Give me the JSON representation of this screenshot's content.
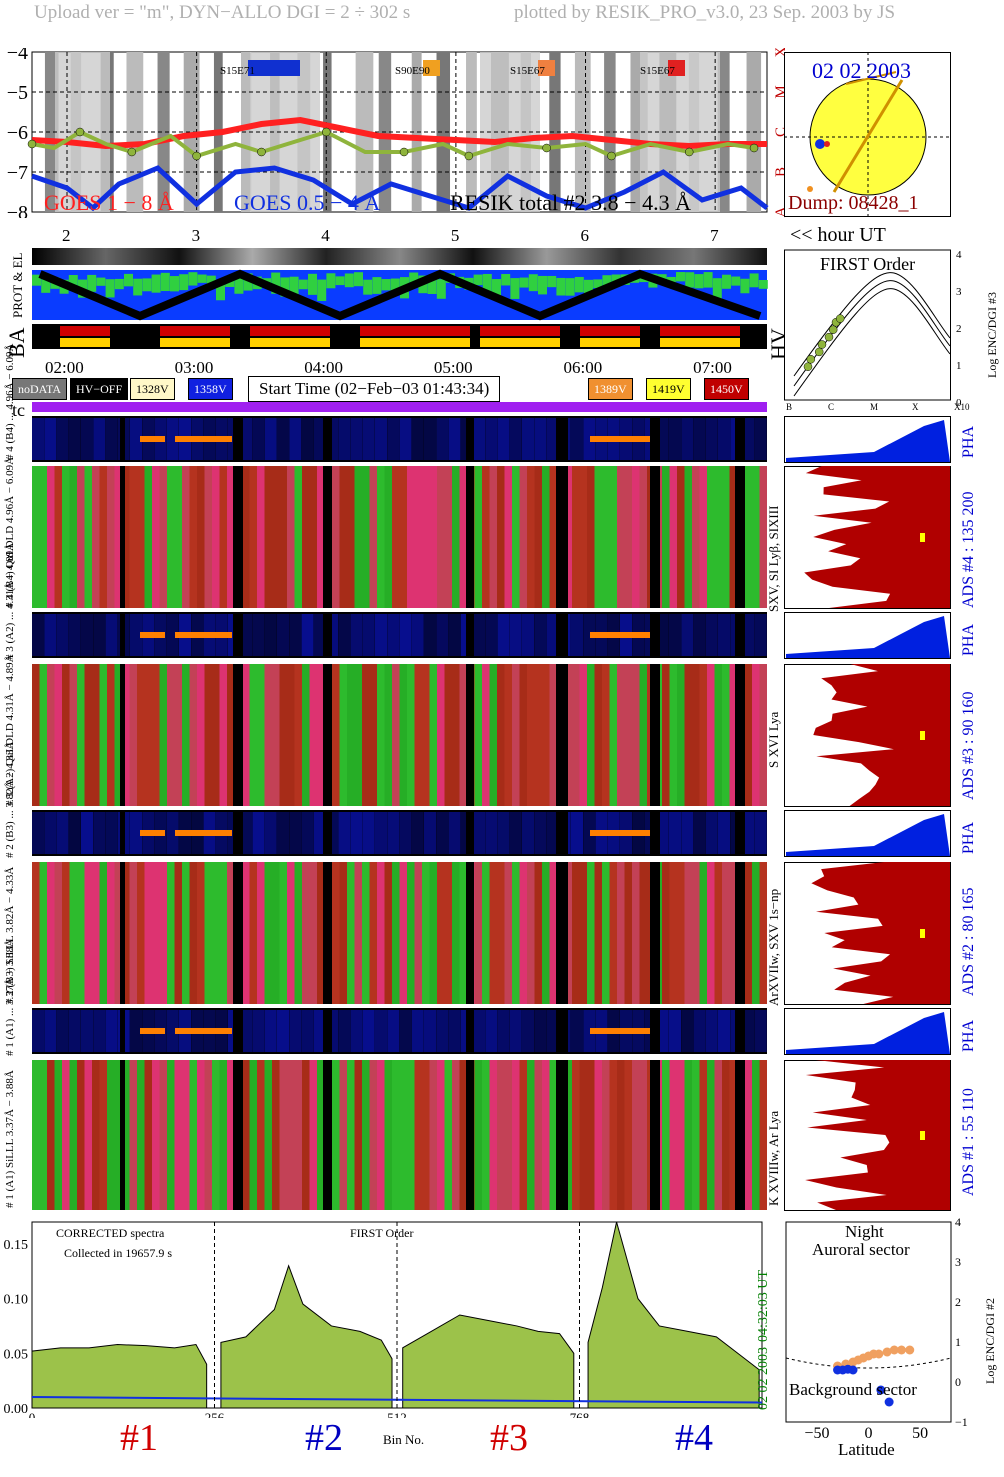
{
  "header": {
    "left": "Upload ver = \"m\", DYN−ALLO DGI =   2 ÷ 302 s",
    "right": "plotted by RESIK_PRO_v3.0, 23 Sep. 2003 by JS"
  },
  "goes": {
    "y_ticks": [
      "−4",
      "−5",
      "−6",
      "−7",
      "−8"
    ],
    "class_letters": [
      "X",
      "M",
      "C",
      "B",
      "A"
    ],
    "flare_markers": [
      {
        "label": "S15E71",
        "color": "#1030d0"
      },
      {
        "label": "S90E90",
        "color": "#f0a020"
      },
      {
        "label": "S15E67",
        "color": "#f08040"
      },
      {
        "label": "S15E67",
        "color": "#e02020"
      }
    ],
    "legend_goes_long": "GOES 1 − 8 Å",
    "legend_goes_short": "GOES 0.5 − 4 Å",
    "legend_resik": "RESIK total #2  3.8 − 4.3 Å",
    "sun_date": "02 02 2003",
    "dump": "Dump: 08428_1"
  },
  "hour_axis": {
    "ticks": [
      "2",
      "3",
      "4",
      "5",
      "6",
      "7"
    ],
    "unit_label": "<< hour UT",
    "clock_ticks": [
      "02:00",
      "03:00",
      "04:00",
      "05:00",
      "06:00",
      "07:00"
    ]
  },
  "strip_labels": {
    "prot_el": "PROT & EL",
    "ba": "BA",
    "hv": "HV",
    "tc": "tc"
  },
  "first_order_panel": {
    "title": "FIRST Order",
    "y_label": "Log ENC/DGI #3",
    "y_ticks": [
      "4",
      "3",
      "2",
      "1",
      "0"
    ],
    "x_ticks": [
      "B",
      "C",
      "M",
      "X",
      "X10"
    ]
  },
  "status_legend": {
    "nodata": "noDATA",
    "hvoff": "HV−OFF",
    "v1": "1328V",
    "v2": "1358V",
    "start_time": "Start Time (02−Feb−03 01:43:34)",
    "v3": "1389V",
    "v4": "1419V",
    "v5": "1450V"
  },
  "channels": [
    {
      "pha_label": "# 4 (B4) ... 4.96Å − 6.09Å",
      "spec_label": "# 4 (B4) QuLDLD 4.96Å − 6.09Å",
      "lines": "SXV, SI Lyβ, SIXIII",
      "ads": "ADS #4 :   135 200"
    },
    {
      "pha_label": "# 3 (A2) ... 4.31Å − 4.89Å",
      "spec_label": "# 3 (A2) QuLDLD  4.31Å − 4.89Å",
      "lines": "S XVI Lya",
      "ads": "ADS #3 :    90 160"
    },
    {
      "pha_label": "# 2 (B3) ... 3.82Å − 4.33Å",
      "spec_label": "# 2 (B3) SiLLL  3.82Å − 4.33Å",
      "lines": "ArXVIIw, SXV 1s−np",
      "ads": "ADS #2 :    80 165"
    },
    {
      "pha_label": "# 1 (A1) ... 3.37Å − 3.88Å",
      "spec_label": "# 1 (A1) SiLLL  3.37Å − 3.88Å",
      "lines": "K XVIIIw, Ar Lya",
      "ads": "ADS #1 :    55 110"
    }
  ],
  "pha_tag": "PHA",
  "spectrum": {
    "annotation_1": "CORRECTED spectra",
    "annotation_2": "Collected in 19657.9 s",
    "annotation_3": "FIRST Order",
    "right_time": "04:32:03 UT",
    "right_date": "02 02 2003",
    "x_label": "Bin No.",
    "channel_numbers": [
      "#1",
      "#2",
      "#3",
      "#4"
    ],
    "channel_colors": [
      "#d00000",
      "#0000c0",
      "#d00000",
      "#0000c0"
    ]
  },
  "orbit_panel": {
    "top_1": "Night",
    "top_2": "Auroral sector",
    "bottom": "Background sector",
    "x_label": "Latitude",
    "y_label": "Log ENC/DGI #2",
    "x_ticks": [
      "−50",
      "0",
      "50"
    ],
    "y_ticks": [
      "4",
      "3",
      "2",
      "1",
      "0",
      "−1"
    ]
  },
  "chart_data": [
    {
      "type": "line",
      "title": "",
      "ylabel": "",
      "ylim": [
        -8,
        -4
      ],
      "x_unit": "hour UT",
      "xlim": [
        1.73,
        7.4
      ],
      "series": [
        {
          "name": "GOES 1 − 8 Å",
          "color": "#ff2020",
          "x": [
            1.73,
            2.0,
            2.3,
            2.6,
            2.9,
            3.2,
            3.5,
            3.8,
            4.1,
            4.4,
            4.7,
            5.0,
            5.3,
            5.6,
            5.9,
            6.2,
            6.5,
            6.8,
            7.1,
            7.4
          ],
          "y": [
            -6.2,
            -6.25,
            -6.35,
            -6.3,
            -6.1,
            -6.0,
            -5.8,
            -5.7,
            -5.9,
            -6.1,
            -6.15,
            -6.2,
            -6.25,
            -6.15,
            -6.1,
            -6.2,
            -6.3,
            -6.35,
            -6.3,
            -6.3
          ]
        },
        {
          "name": "GOES 0.5 − 4 Å",
          "color": "#1030e0",
          "x": [
            1.73,
            2.0,
            2.2,
            2.4,
            2.7,
            3.0,
            3.3,
            3.6,
            3.9,
            4.2,
            4.5,
            4.8,
            5.1,
            5.4,
            5.7,
            6.0,
            6.3,
            6.6,
            6.9,
            7.2,
            7.4
          ],
          "y": [
            -7.1,
            -7.4,
            -7.9,
            -7.3,
            -6.9,
            -7.8,
            -7.0,
            -6.9,
            -7.2,
            -7.8,
            -7.3,
            -7.6,
            -7.9,
            -7.1,
            -7.6,
            -7.9,
            -7.5,
            -7.0,
            -7.7,
            -7.4,
            -7.9
          ]
        },
        {
          "name": "RESIK total #2  3.8 − 4.3 Å",
          "color": "#8fb43c",
          "x": [
            1.73,
            1.9,
            2.1,
            2.3,
            2.5,
            2.8,
            3.0,
            3.3,
            3.5,
            3.8,
            4.0,
            4.3,
            4.6,
            4.9,
            5.1,
            5.4,
            5.7,
            6.0,
            6.2,
            6.5,
            6.8,
            7.1,
            7.3
          ],
          "y": [
            -6.3,
            -6.4,
            -6.0,
            -6.3,
            -6.5,
            -6.1,
            -6.6,
            -6.3,
            -6.5,
            -6.2,
            -6.0,
            -6.5,
            -6.5,
            -6.3,
            -6.6,
            -6.3,
            -6.4,
            -6.3,
            -6.6,
            -6.3,
            -6.5,
            -6.3,
            -6.4
          ]
        }
      ]
    },
    {
      "type": "area",
      "title": "",
      "xlabel": "Bin No.",
      "x_ticks": [
        0,
        256,
        512,
        768
      ],
      "ylim": [
        0,
        0.17
      ],
      "y_ticks": [
        0.0,
        0.05,
        0.1,
        0.15
      ],
      "xlim": [
        0,
        1024
      ],
      "series": [
        {
          "name": "#1",
          "x": [
            0,
            40,
            80,
            120,
            160,
            200,
            230,
            245
          ],
          "y": [
            0.052,
            0.055,
            0.055,
            0.058,
            0.057,
            0.055,
            0.058,
            0.04
          ]
        },
        {
          "name": "#2",
          "x": [
            265,
            300,
            340,
            360,
            380,
            420,
            460,
            490,
            505
          ],
          "y": [
            0.06,
            0.065,
            0.09,
            0.13,
            0.095,
            0.075,
            0.07,
            0.062,
            0.045
          ]
        },
        {
          "name": "#3",
          "x": [
            520,
            560,
            600,
            640,
            680,
            710,
            740,
            760
          ],
          "y": [
            0.055,
            0.07,
            0.085,
            0.08,
            0.075,
            0.07,
            0.068,
            0.05
          ]
        },
        {
          "name": "#4",
          "x": [
            780,
            800,
            820,
            850,
            880,
            920,
            960,
            1000,
            1020
          ],
          "y": [
            0.06,
            0.11,
            0.17,
            0.1,
            0.075,
            0.07,
            0.065,
            0.045,
            0.035
          ]
        }
      ]
    },
    {
      "type": "scatter",
      "xlabel": "Latitude",
      "ylabel": "Log ENC/DGI #2",
      "xlim": [
        -80,
        80
      ],
      "ylim": [
        -1,
        4
      ],
      "series": [
        {
          "name": "",
          "color": "#f0a060",
          "x": [
            -30,
            -22,
            -15,
            -10,
            -5,
            0,
            5,
            10,
            18,
            25,
            32,
            40
          ],
          "y": [
            0.4,
            0.45,
            0.5,
            0.55,
            0.6,
            0.65,
            0.7,
            0.7,
            0.75,
            0.8,
            0.8,
            0.8
          ]
        },
        {
          "name": "",
          "color": "#1030e0",
          "x": [
            -30,
            -25,
            -20,
            -15,
            12,
            20
          ],
          "y": [
            0.3,
            0.3,
            0.32,
            0.3,
            -0.2,
            -0.5
          ]
        }
      ]
    },
    {
      "type": "scatter",
      "title": "FIRST Order",
      "ylabel": "Log ENC/DGI #3",
      "ylim": [
        0,
        4
      ],
      "series": [
        {
          "name": "",
          "color": "#8fb43c",
          "x": [
            0.1,
            0.12,
            0.18,
            0.2,
            0.25,
            0.28,
            0.3,
            0.33
          ],
          "y": [
            0.9,
            1.1,
            1.3,
            1.5,
            1.7,
            1.9,
            2.1,
            2.2
          ]
        }
      ]
    }
  ]
}
